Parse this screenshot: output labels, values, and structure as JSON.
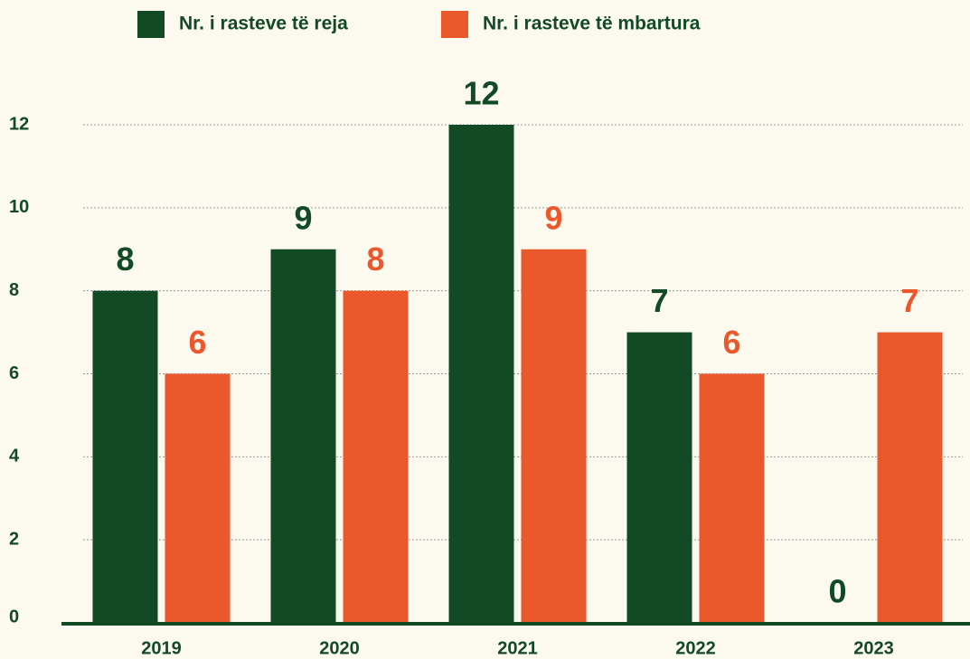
{
  "chart_data": {
    "type": "bar",
    "categories": [
      "2019",
      "2020",
      "2021",
      "2022",
      "2023"
    ],
    "series": [
      {
        "name": "Nr. i rasteve të reja",
        "color": "#134a26",
        "values": [
          8,
          9,
          12,
          7,
          0
        ]
      },
      {
        "name": "Nr. i rasteve të mbartura",
        "color": "#ea582b",
        "values": [
          6,
          8,
          9,
          6,
          7
        ]
      }
    ],
    "ylim": [
      0,
      12
    ],
    "yticks": [
      0,
      2,
      4,
      6,
      8,
      10,
      12
    ],
    "grid": true,
    "legend": "top"
  }
}
